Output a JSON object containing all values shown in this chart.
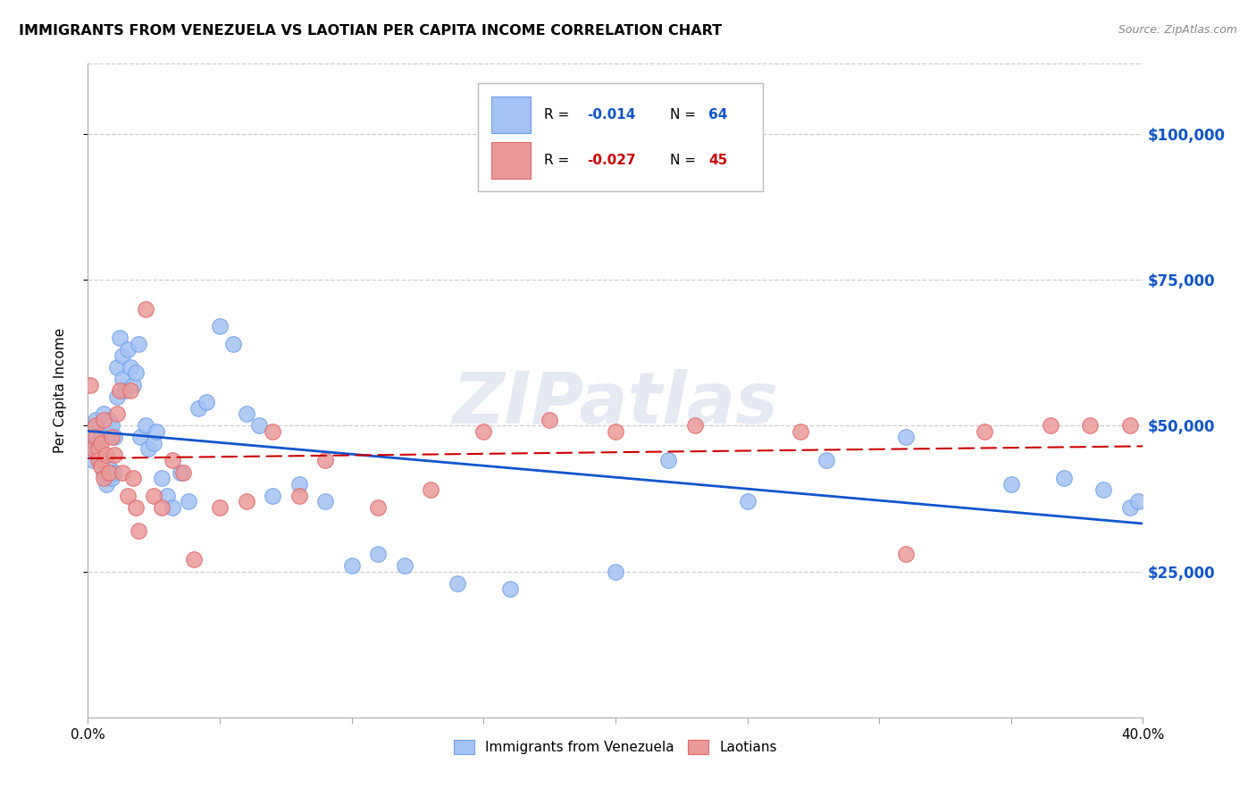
{
  "title": "IMMIGRANTS FROM VENEZUELA VS LAOTIAN PER CAPITA INCOME CORRELATION CHART",
  "source": "Source: ZipAtlas.com",
  "ylabel": "Per Capita Income",
  "watermark": "ZIPatlas",
  "legend_label1": "Immigrants from Venezuela",
  "legend_label2": "Laotians",
  "blue_color": "#a4c2f4",
  "pink_color": "#ea9999",
  "blue_scatter_edge": "#6d9eeb",
  "pink_scatter_edge": "#e06666",
  "blue_line_color": "#1155cc",
  "pink_line_color": "#cc0000",
  "right_axis_color": "#1155cc",
  "ytick_labels": [
    "$25,000",
    "$50,000",
    "$75,000",
    "$100,000"
  ],
  "ytick_values": [
    25000,
    50000,
    75000,
    100000
  ],
  "ymax": 112000,
  "xmax": 0.4,
  "blue_x": [
    0.001,
    0.002,
    0.002,
    0.003,
    0.003,
    0.004,
    0.004,
    0.005,
    0.005,
    0.006,
    0.006,
    0.007,
    0.007,
    0.008,
    0.008,
    0.009,
    0.009,
    0.01,
    0.01,
    0.011,
    0.011,
    0.012,
    0.013,
    0.013,
    0.014,
    0.015,
    0.016,
    0.017,
    0.018,
    0.019,
    0.02,
    0.022,
    0.023,
    0.025,
    0.026,
    0.028,
    0.03,
    0.032,
    0.035,
    0.038,
    0.042,
    0.045,
    0.05,
    0.055,
    0.06,
    0.065,
    0.07,
    0.08,
    0.09,
    0.1,
    0.11,
    0.12,
    0.14,
    0.16,
    0.2,
    0.22,
    0.25,
    0.28,
    0.31,
    0.35,
    0.37,
    0.385,
    0.395,
    0.398
  ],
  "blue_y": [
    46000,
    48000,
    44000,
    47000,
    51000,
    46000,
    50000,
    44000,
    48000,
    42000,
    52000,
    40000,
    49000,
    43000,
    51000,
    41000,
    50000,
    42000,
    48000,
    60000,
    55000,
    65000,
    62000,
    58000,
    56000,
    63000,
    60000,
    57000,
    59000,
    64000,
    48000,
    50000,
    46000,
    47000,
    49000,
    41000,
    38000,
    36000,
    42000,
    37000,
    53000,
    54000,
    67000,
    64000,
    52000,
    50000,
    38000,
    40000,
    37000,
    26000,
    28000,
    26000,
    23000,
    22000,
    25000,
    44000,
    37000,
    44000,
    48000,
    40000,
    41000,
    39000,
    36000,
    37000
  ],
  "pink_x": [
    0.001,
    0.002,
    0.003,
    0.003,
    0.004,
    0.004,
    0.005,
    0.005,
    0.006,
    0.006,
    0.007,
    0.008,
    0.009,
    0.01,
    0.011,
    0.012,
    0.013,
    0.015,
    0.016,
    0.017,
    0.018,
    0.019,
    0.022,
    0.025,
    0.028,
    0.032,
    0.036,
    0.04,
    0.05,
    0.06,
    0.07,
    0.08,
    0.09,
    0.11,
    0.13,
    0.15,
    0.175,
    0.2,
    0.23,
    0.27,
    0.31,
    0.34,
    0.365,
    0.38,
    0.395
  ],
  "pink_y": [
    57000,
    46000,
    50000,
    48000,
    46000,
    44000,
    47000,
    43000,
    51000,
    41000,
    45000,
    42000,
    48000,
    45000,
    52000,
    56000,
    42000,
    38000,
    56000,
    41000,
    36000,
    32000,
    70000,
    38000,
    36000,
    44000,
    42000,
    27000,
    36000,
    37000,
    49000,
    38000,
    44000,
    36000,
    39000,
    49000,
    51000,
    49000,
    50000,
    49000,
    28000,
    49000,
    50000,
    50000,
    50000
  ]
}
